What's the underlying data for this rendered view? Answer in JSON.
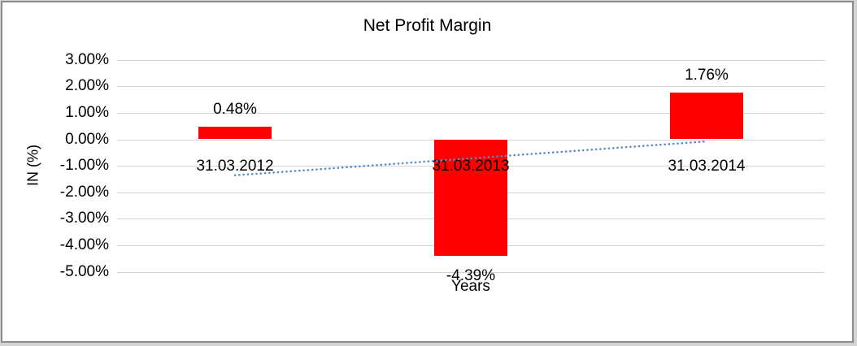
{
  "frame": {
    "background": "#ffffff",
    "outer_background": "#d4d4d4",
    "border_color": "#8c8c8c"
  },
  "chart_data": {
    "type": "bar",
    "title": "Net Profit Margin",
    "categories": [
      "31.03.2012",
      "31.03.2013",
      "31.03.2014"
    ],
    "values": [
      0.48,
      -4.39,
      1.76
    ],
    "value_labels": [
      "0.48%",
      "-4.39%",
      "1.76%"
    ],
    "xlabel": "Years",
    "ylabel": "IN (%)",
    "ylim": [
      -5,
      3
    ],
    "ytick_step": 1,
    "ytick_labels": [
      "3.00%",
      "2.00%",
      "1.00%",
      "0.00%",
      "-1.00%",
      "-2.00%",
      "-3.00%",
      "-4.00%",
      "-5.00%"
    ],
    "grid": true,
    "legend": "none",
    "bar_color": "#ff0000",
    "gridline_color": "#d3d3d3",
    "text_color": "#000000",
    "trendline": {
      "type": "linear",
      "style": "dotted-round",
      "color": "#5a8ac6",
      "start_value": -1.36,
      "end_value": -0.08
    }
  }
}
